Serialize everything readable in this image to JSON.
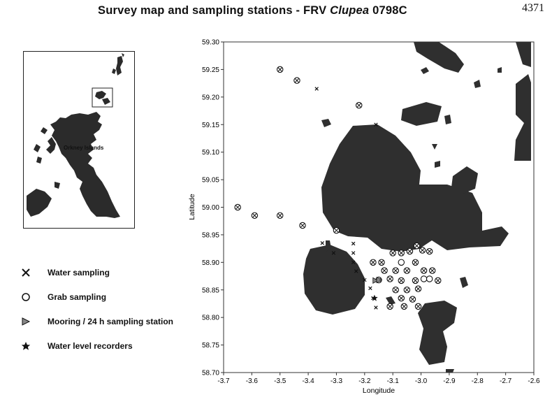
{
  "title": {
    "prefix": "Survey map and sampling stations - ",
    "frv": "FRV ",
    "vessel": "Clupea",
    "cruise": " 0798C"
  },
  "page_number": "4371",
  "inset": {
    "label": "Orkney Islands"
  },
  "map": {
    "xlabel": "Longitude",
    "ylabel": "Latitude",
    "xlim": [
      -3.7,
      -2.6
    ],
    "ylim": [
      58.7,
      59.3
    ],
    "x_ticks": [
      "-3.7",
      "-3.6",
      "-3.5",
      "-3.4",
      "-3.3",
      "-3.2",
      "-3.1",
      "-3.0",
      "-2.9",
      "-2.8",
      "-2.7",
      "-2.6"
    ],
    "y_ticks": [
      "58.70",
      "58.75",
      "58.80",
      "58.85",
      "58.90",
      "58.95",
      "59.00",
      "59.05",
      "59.10",
      "59.15",
      "59.20",
      "59.25",
      "59.30"
    ],
    "land_color": "#2f2f2f"
  },
  "legend": [
    {
      "symbol": "cross-icon",
      "label": "Water sampling"
    },
    {
      "symbol": "circle-icon",
      "label": "Grab sampling"
    },
    {
      "symbol": "triangle-icon",
      "label": "Mooring / 24 h sampling station"
    },
    {
      "symbol": "star-icon",
      "label": "Water level recorders"
    }
  ],
  "stations": {
    "water_and_grab": [
      [
        -3.5,
        59.25
      ],
      [
        -3.44,
        59.23
      ],
      [
        -3.22,
        59.185
      ],
      [
        -3.65,
        59.0
      ],
      [
        -3.59,
        58.985
      ],
      [
        -3.5,
        58.985
      ],
      [
        -3.42,
        58.967
      ],
      [
        -3.3,
        58.958
      ],
      [
        -3.17,
        58.9
      ],
      [
        -3.14,
        58.9
      ],
      [
        -3.1,
        58.917
      ],
      [
        -3.07,
        58.917
      ],
      [
        -3.04,
        58.92
      ],
      [
        -3.015,
        58.93
      ],
      [
        -2.995,
        58.922
      ],
      [
        -2.97,
        58.92
      ],
      [
        -3.13,
        58.885
      ],
      [
        -3.09,
        58.885
      ],
      [
        -3.05,
        58.885
      ],
      [
        -3.02,
        58.9
      ],
      [
        -2.99,
        58.885
      ],
      [
        -2.96,
        58.885
      ],
      [
        -3.15,
        58.868
      ],
      [
        -3.11,
        58.87
      ],
      [
        -3.07,
        58.867
      ],
      [
        -3.02,
        58.867
      ],
      [
        -2.94,
        58.867
      ],
      [
        -3.09,
        58.85
      ],
      [
        -3.05,
        58.85
      ],
      [
        -3.01,
        58.852
      ],
      [
        -3.07,
        58.835
      ],
      [
        -3.03,
        58.833
      ],
      [
        -3.11,
        58.82
      ],
      [
        -3.06,
        58.82
      ],
      [
        -3.01,
        58.82
      ]
    ],
    "water": [
      [
        -3.37,
        59.215
      ],
      [
        -3.16,
        59.15
      ],
      [
        -3.35,
        58.935
      ],
      [
        -3.24,
        58.934
      ],
      [
        -3.31,
        58.917
      ],
      [
        -3.24,
        58.917
      ],
      [
        -3.24,
        58.9
      ],
      [
        -3.23,
        58.884
      ],
      [
        -3.2,
        58.868
      ],
      [
        -3.18,
        58.853
      ],
      [
        -3.17,
        58.835
      ],
      [
        -3.16,
        58.818
      ]
    ],
    "grab": [
      [
        -3.07,
        58.9
      ],
      [
        -2.99,
        58.87
      ],
      [
        -2.97,
        58.87
      ]
    ],
    "mooring": [
      [
        -3.163,
        58.867
      ],
      [
        -3.15,
        58.868
      ]
    ],
    "water_level": [
      [
        -3.165,
        58.835
      ]
    ]
  }
}
